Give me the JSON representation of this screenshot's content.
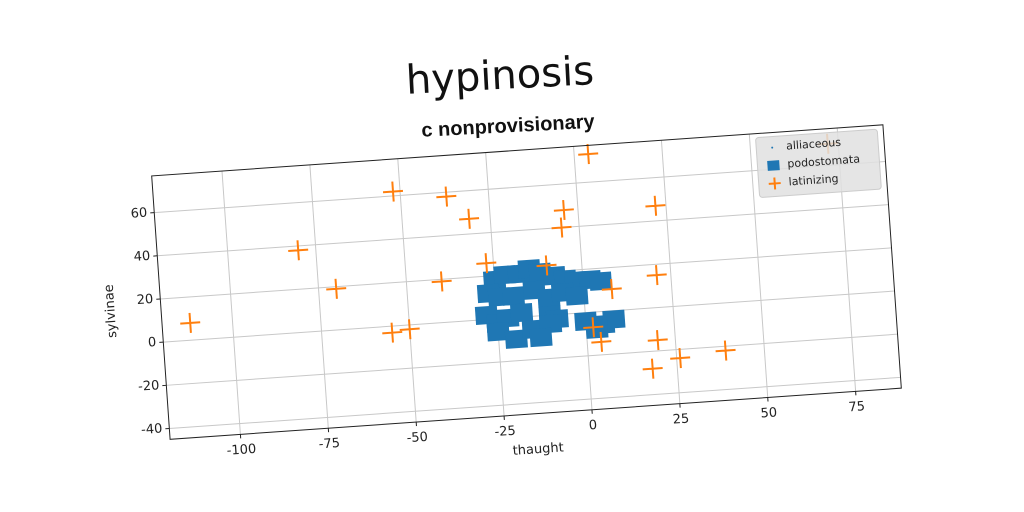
{
  "chart_data": {
    "type": "scatter",
    "title": "hypinosis",
    "subtitle": "c nonprovisionary",
    "x_label": "thaught",
    "y_label": "sylvinae",
    "xlim": [
      -120,
      88
    ],
    "ylim": [
      -45,
      77
    ],
    "xticks": [
      -100,
      -75,
      -50,
      -25,
      0,
      25,
      50,
      75
    ],
    "yticks": [
      -40,
      -20,
      0,
      20,
      40,
      60
    ],
    "grid": true,
    "legend": "upper right",
    "series": [
      {
        "name": "alliaceous",
        "color": "#1f77b4",
        "marker": "dot",
        "x": [],
        "y": []
      },
      {
        "name": "podostomata",
        "color": "#1f77b4",
        "marker": "square",
        "x": [
          -25,
          -22,
          -18,
          -15,
          -12,
          -8,
          -5,
          -2,
          2,
          5,
          -27,
          -24,
          -20,
          -14,
          -10,
          -6,
          -2,
          -28,
          -25,
          -22,
          -18,
          -10,
          -8,
          -25,
          -20,
          -15,
          -10,
          0,
          5,
          8,
          3,
          -13
        ],
        "y": [
          18,
          20,
          20,
          22,
          20,
          18,
          16,
          15,
          15,
          14,
          12,
          10,
          10,
          12,
          8,
          10,
          8,
          2,
          -2,
          0,
          2,
          0,
          -2,
          -6,
          -10,
          -6,
          -4,
          -4,
          -6,
          -4,
          -8,
          -10
        ]
      },
      {
        "name": "latinizing",
        "color": "#ff7f0e",
        "marker": "plus",
        "x": [
          -112,
          -80,
          -70,
          -52,
          -37,
          -31,
          -40,
          -55,
          -50,
          -27,
          -10,
          -4,
          -5,
          4,
          8,
          2,
          4,
          22,
          21,
          20,
          18,
          26,
          39,
          72
        ],
        "y": [
          8,
          38,
          19,
          62,
          58,
          47,
          19,
          -3,
          -2,
          26,
          23,
          48,
          40,
          73,
          10,
          -7,
          -14,
          47,
          15,
          -15,
          -28,
          -24,
          -22,
          70
        ]
      }
    ]
  }
}
